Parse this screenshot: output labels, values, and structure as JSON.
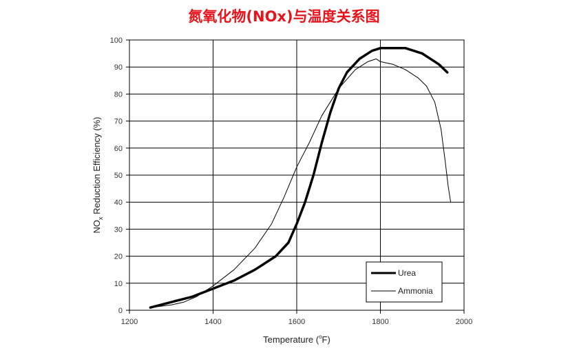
{
  "chart_data": {
    "type": "line",
    "title": "氮氧化物(NOx)与温度关系图",
    "xlabel_main": "Temperature (",
    "xlabel_sup": "o",
    "xlabel_end": "F)",
    "ylabel_main": "NO",
    "ylabel_sub": "x",
    "ylabel_end": " Reduction Efficiency (%)",
    "xlim": [
      1200,
      2000
    ],
    "ylim": [
      0,
      100
    ],
    "xticks": [
      1200,
      1400,
      1600,
      1800,
      2000
    ],
    "yticks": [
      0,
      10,
      20,
      30,
      40,
      50,
      60,
      70,
      80,
      90,
      100
    ],
    "grid": true,
    "legend_position": "bottom-right",
    "series": [
      {
        "name": "Urea",
        "style": "thick",
        "points": [
          [
            1250,
            1
          ],
          [
            1300,
            3
          ],
          [
            1350,
            5
          ],
          [
            1400,
            8
          ],
          [
            1450,
            11
          ],
          [
            1500,
            15
          ],
          [
            1550,
            20
          ],
          [
            1580,
            25
          ],
          [
            1600,
            32
          ],
          [
            1620,
            40
          ],
          [
            1640,
            50
          ],
          [
            1660,
            62
          ],
          [
            1680,
            73
          ],
          [
            1700,
            82
          ],
          [
            1720,
            88
          ],
          [
            1750,
            93
          ],
          [
            1780,
            96
          ],
          [
            1800,
            97
          ],
          [
            1820,
            97
          ],
          [
            1860,
            97
          ],
          [
            1900,
            95
          ],
          [
            1940,
            91
          ],
          [
            1960,
            88
          ]
        ]
      },
      {
        "name": "Ammonia",
        "style": "thin",
        "points": [
          [
            1250,
            1
          ],
          [
            1300,
            2
          ],
          [
            1330,
            3
          ],
          [
            1360,
            5
          ],
          [
            1400,
            9
          ],
          [
            1450,
            15
          ],
          [
            1500,
            23
          ],
          [
            1540,
            32
          ],
          [
            1570,
            42
          ],
          [
            1600,
            53
          ],
          [
            1630,
            62
          ],
          [
            1660,
            72
          ],
          [
            1700,
            82
          ],
          [
            1740,
            89
          ],
          [
            1770,
            92
          ],
          [
            1790,
            93
          ],
          [
            1800,
            92
          ],
          [
            1830,
            91
          ],
          [
            1860,
            89
          ],
          [
            1890,
            86
          ],
          [
            1910,
            83
          ],
          [
            1930,
            77
          ],
          [
            1945,
            67
          ],
          [
            1955,
            55
          ],
          [
            1962,
            46
          ],
          [
            1968,
            40
          ]
        ]
      }
    ]
  }
}
